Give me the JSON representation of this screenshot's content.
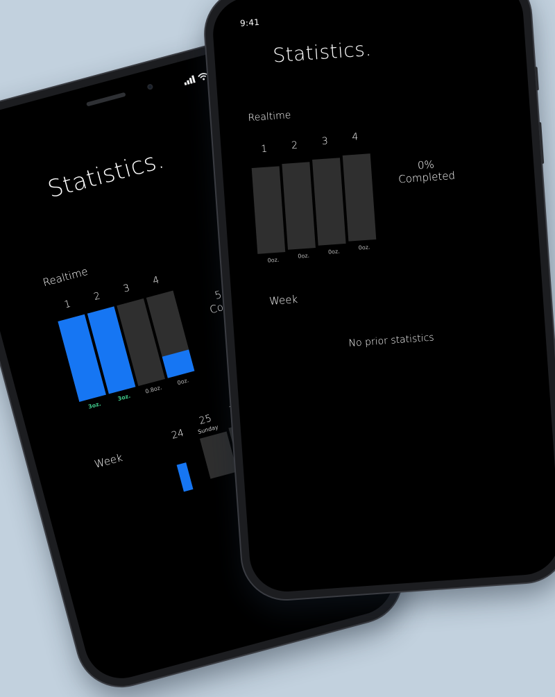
{
  "colors": {
    "background": "#c2d1de",
    "screen": "#000000",
    "bar_empty": "#2f2f2f",
    "bar_fill": "#1676f3",
    "oz_highlight": "#3fc98a"
  },
  "status_bar": {
    "time": "9:41",
    "icons": [
      "signal-icon",
      "wifi-icon",
      "battery-icon"
    ]
  },
  "back_screen": {
    "title": "Statistics.",
    "realtime_label": "Realtime",
    "columns": [
      {
        "num": "1",
        "fill": 1.0,
        "oz": "3oz.",
        "highlight": true
      },
      {
        "num": "2",
        "fill": 1.0,
        "oz": "3oz.",
        "highlight": true
      },
      {
        "num": "3",
        "fill": 0.0,
        "oz": "0.8oz.",
        "highlight": false
      },
      {
        "num": "4",
        "fill": 0.27,
        "oz": "0oz.",
        "highlight": false
      }
    ],
    "completed_partial_1": "5",
    "completed_partial_2": "Com",
    "week_label": "Week",
    "week_days": [
      {
        "num": "24",
        "name": ""
      },
      {
        "num": "25",
        "name": "Sunday"
      },
      {
        "num": "2",
        "name": ""
      }
    ]
  },
  "front_screen": {
    "title": "Statistics.",
    "realtime_label": "Realtime",
    "columns": [
      {
        "num": "1",
        "fill": 0.0,
        "oz": "0oz."
      },
      {
        "num": "2",
        "fill": 0.0,
        "oz": "0oz."
      },
      {
        "num": "3",
        "fill": 0.0,
        "oz": "0oz."
      },
      {
        "num": "4",
        "fill": 0.0,
        "oz": "0oz."
      }
    ],
    "percent": "0%",
    "completed": "Completed",
    "week_label": "Week",
    "empty_message": "No prior statistics"
  }
}
